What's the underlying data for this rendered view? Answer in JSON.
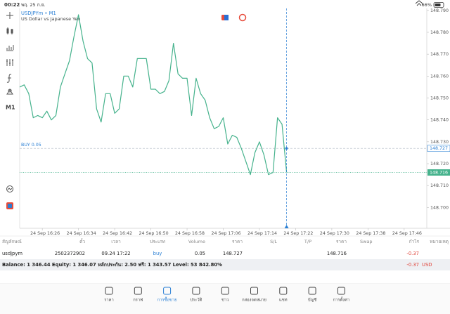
{
  "status_bar": {
    "time": "00:22",
    "date": "พฤ. 25 ก.ย.",
    "battery": "66%"
  },
  "toolbar": {
    "timeframe": "M1"
  },
  "chart": {
    "type": "line",
    "title": "USDJPYm • M1",
    "subtitle": "US Dollar vs Japanese Yen",
    "color": "#45b28c",
    "values": [
      148.755,
      148.756,
      148.752,
      148.741,
      148.742,
      148.741,
      148.744,
      148.74,
      148.742,
      148.755,
      148.761,
      148.767,
      148.778,
      148.788,
      148.776,
      148.768,
      148.766,
      148.745,
      148.739,
      148.752,
      148.752,
      148.743,
      148.745,
      148.76,
      148.76,
      148.755,
      148.768,
      148.768,
      148.768,
      148.754,
      148.754,
      148.752,
      148.753,
      148.758,
      148.775,
      148.761,
      148.759,
      148.759,
      148.742,
      148.759,
      148.752,
      148.749,
      148.741,
      148.736,
      148.737,
      148.741,
      148.729,
      148.733,
      148.732,
      148.727,
      148.721,
      148.715,
      148.725,
      148.73,
      148.724,
      148.715,
      148.716,
      148.741,
      148.738,
      148.716
    ],
    "xlim": [
      0,
      90
    ],
    "xticks": [
      {
        "value": 5,
        "label": "24 Sep 16:26"
      },
      {
        "value": 13,
        "label": "24 Sep 16:34"
      },
      {
        "value": 21,
        "label": "24 Sep 16:42"
      },
      {
        "value": 29,
        "label": "24 Sep 16:50"
      },
      {
        "value": 37,
        "label": "24 Sep 16:58"
      },
      {
        "value": 45,
        "label": "24 Sep 17:06"
      },
      {
        "value": 53,
        "label": "24 Sep 17:14"
      },
      {
        "value": 61,
        "label": "24 Sep 17:22"
      },
      {
        "value": 69,
        "label": "24 Sep 17:30"
      },
      {
        "value": 77,
        "label": "24 Sep 17:38"
      },
      {
        "value": 85,
        "label": "24 Sep 17:46"
      }
    ],
    "ylim": [
      148.6905,
      148.7909
    ],
    "yticks": [
      {
        "value": 148.79,
        "label": "148.790"
      },
      {
        "value": 148.78,
        "label": "148.780"
      },
      {
        "value": 148.77,
        "label": "148.770"
      },
      {
        "value": 148.76,
        "label": "148.760"
      },
      {
        "value": 148.75,
        "label": "148.750"
      },
      {
        "value": 148.74,
        "label": "148.740"
      },
      {
        "value": 148.73,
        "label": "148.730"
      },
      {
        "value": 148.72,
        "label": "148.720"
      },
      {
        "value": 148.71,
        "label": "148.710"
      },
      {
        "value": 148.7,
        "label": "148.700"
      }
    ],
    "order_line": {
      "label": "BUY 0.05",
      "value": 148.727,
      "color": "#2a7fd4"
    },
    "price_line": {
      "value": 148.716,
      "color": "#45b28c"
    }
  },
  "positions": {
    "headers": [
      "สัญลักษณ์",
      "ตั๋ว",
      "เวลา",
      "ประเภท",
      "Volume",
      "ราคา",
      "S/L",
      "T/P",
      "ราคา",
      "Swap",
      "กำไร",
      "หมายเหตุ"
    ],
    "rows": [
      {
        "symbol": "usdjpym",
        "ticket": "2502372902",
        "time": "09.24 17:22",
        "type": "buy",
        "volume": "0.05",
        "open_price": "148.727",
        "price": "148.716",
        "profit": "-0.37"
      }
    ]
  },
  "summary": {
    "text": "Balance: 1 346.44 Equity: 1 346.07 หลักประกัน: 2.50 ฟรี: 1 343.57 Level: 53 842.80%",
    "profit": "-0.37",
    "currency": "USD"
  },
  "tabs": [
    "ราคา",
    "กราฟ",
    "การซื้อขาย",
    "ประวัติ",
    "ข่าว",
    "กล่องจดหมาย",
    "แชท",
    "บัญชี",
    "การตั้งค่า"
  ],
  "active_tab": 2
}
